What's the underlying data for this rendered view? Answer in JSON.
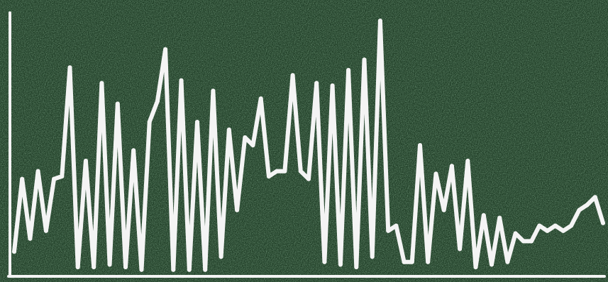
{
  "colors": {
    "background": "#1f3d26",
    "background_speckle": "#2c5233",
    "line": "#f4f4f4",
    "axis": "#f4f4f4"
  },
  "chart_data": {
    "type": "line",
    "title": "",
    "xlabel": "",
    "ylabel": "",
    "grid": false,
    "legend": "none",
    "ylim": [
      0,
      100
    ],
    "series": [
      {
        "values": [
          9,
          37,
          14,
          40,
          17,
          37,
          38,
          80,
          3,
          44,
          3,
          74,
          4,
          66,
          3,
          48,
          2,
          59,
          67,
          87,
          2,
          75,
          2,
          59,
          2,
          71,
          7,
          56,
          25,
          53,
          50,
          68,
          38,
          40,
          40,
          77,
          40,
          37,
          74,
          5,
          73,
          4,
          79,
          3,
          83,
          7,
          98,
          17,
          19,
          5,
          5,
          50,
          5,
          39,
          25,
          42,
          10,
          44,
          3,
          23,
          4,
          22,
          5,
          16,
          13,
          13,
          19,
          17,
          19,
          17,
          19,
          25,
          27,
          30,
          20
        ]
      }
    ]
  }
}
